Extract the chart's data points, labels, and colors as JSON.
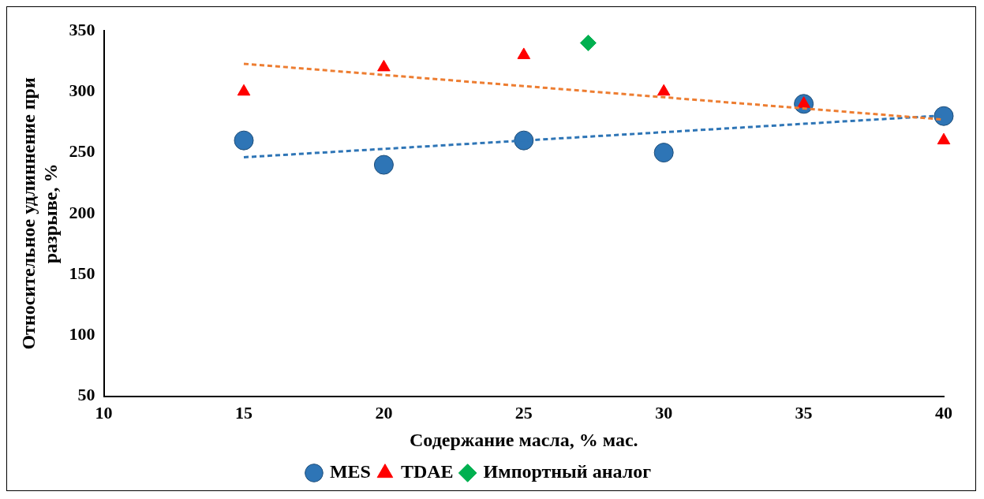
{
  "chart_data": {
    "type": "scatter",
    "xlabel": "Содержание масла, % мас.",
    "ylabel": "Относительное удлиннение при разрыве, %",
    "xlim": [
      10,
      40
    ],
    "xticks": [
      10,
      15,
      20,
      25,
      30,
      35,
      40
    ],
    "ylim": [
      50,
      350
    ],
    "yticks": [
      50,
      100,
      150,
      200,
      250,
      300,
      350
    ],
    "grid": false,
    "legend": "bottom",
    "series": [
      {
        "name": "MES",
        "color": "#2e75b6",
        "marker": "circle",
        "x": [
          15,
          20,
          25,
          30,
          35,
          40
        ],
        "values": [
          260,
          240,
          260,
          250,
          290,
          280
        ]
      },
      {
        "name": "TDAE",
        "color": "#ff0000",
        "marker": "triangle",
        "x": [
          15,
          20,
          25,
          30,
          35,
          40
        ],
        "values": [
          300,
          320,
          330,
          300,
          290,
          260
        ]
      },
      {
        "name": "Импортный аналог",
        "color": "#00b050",
        "marker": "diamond",
        "x": [
          27.3
        ],
        "values": [
          340
        ]
      },
      {
        "type": "line",
        "color": "#2e75b6",
        "line_style": "dashed",
        "marker": "none",
        "x": [
          15,
          40
        ],
        "values": [
          246.2,
          280.5
        ]
      },
      {
        "type": "line",
        "color": "#ed7d31",
        "line_style": "dashed",
        "marker": "none",
        "x": [
          15,
          40
        ],
        "values": [
          322.9,
          277.1
        ]
      }
    ]
  }
}
